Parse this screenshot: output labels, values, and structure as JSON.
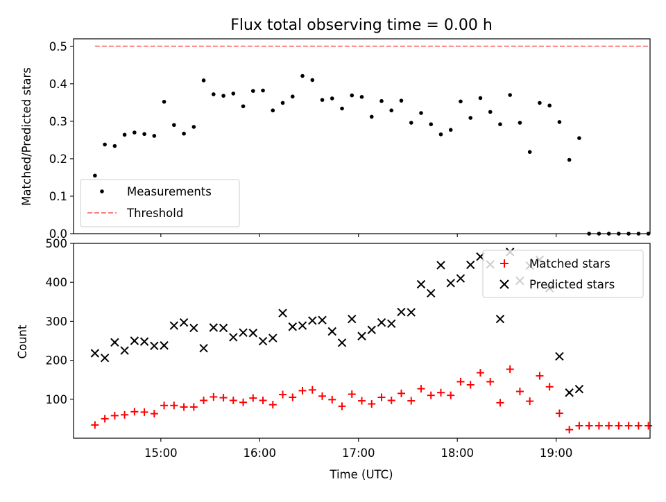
{
  "figure": {
    "title": "Flux total observing time = 0.00 h"
  },
  "chart_data": [
    {
      "type": "scatter",
      "title": "Flux total observing time = 0.00 h",
      "ylabel": "Matched/Predicted stars",
      "xlabel": "",
      "ylim": [
        0,
        0.52
      ],
      "xlim": [
        "14:07",
        "19:57"
      ],
      "yticks": [
        "0.0",
        "0.1",
        "0.2",
        "0.3",
        "0.4",
        "0.5"
      ],
      "yticks_values": [
        0.0,
        0.1,
        0.2,
        0.3,
        0.4,
        0.5
      ],
      "legend_location": "lower-left",
      "grid": false,
      "series": [
        {
          "name": "Measurements",
          "marker": "dot",
          "color": "#000000",
          "points": [
            {
              "x": "14:20",
              "y": 0.155
            },
            {
              "x": "14:26",
              "y": 0.238
            },
            {
              "x": "14:32",
              "y": 0.234
            },
            {
              "x": "14:38",
              "y": 0.264
            },
            {
              "x": "14:44",
              "y": 0.27
            },
            {
              "x": "14:50",
              "y": 0.266
            },
            {
              "x": "14:56",
              "y": 0.261
            },
            {
              "x": "15:02",
              "y": 0.352
            },
            {
              "x": "15:08",
              "y": 0.29
            },
            {
              "x": "15:14",
              "y": 0.267
            },
            {
              "x": "15:20",
              "y": 0.285
            },
            {
              "x": "15:26",
              "y": 0.409
            },
            {
              "x": "15:32",
              "y": 0.372
            },
            {
              "x": "15:38",
              "y": 0.368
            },
            {
              "x": "15:44",
              "y": 0.374
            },
            {
              "x": "15:50",
              "y": 0.34
            },
            {
              "x": "15:56",
              "y": 0.381
            },
            {
              "x": "16:02",
              "y": 0.382
            },
            {
              "x": "16:08",
              "y": 0.329
            },
            {
              "x": "16:14",
              "y": 0.349
            },
            {
              "x": "16:20",
              "y": 0.366
            },
            {
              "x": "16:26",
              "y": 0.421
            },
            {
              "x": "16:32",
              "y": 0.41
            },
            {
              "x": "16:38",
              "y": 0.357
            },
            {
              "x": "16:44",
              "y": 0.361
            },
            {
              "x": "16:50",
              "y": 0.334
            },
            {
              "x": "16:56",
              "y": 0.369
            },
            {
              "x": "17:02",
              "y": 0.365
            },
            {
              "x": "17:08",
              "y": 0.312
            },
            {
              "x": "17:14",
              "y": 0.354
            },
            {
              "x": "17:20",
              "y": 0.329
            },
            {
              "x": "17:26",
              "y": 0.355
            },
            {
              "x": "17:32",
              "y": 0.296
            },
            {
              "x": "17:38",
              "y": 0.322
            },
            {
              "x": "17:44",
              "y": 0.292
            },
            {
              "x": "17:50",
              "y": 0.265
            },
            {
              "x": "17:56",
              "y": 0.277
            },
            {
              "x": "18:02",
              "y": 0.353
            },
            {
              "x": "18:08",
              "y": 0.309
            },
            {
              "x": "18:14",
              "y": 0.362
            },
            {
              "x": "18:20",
              "y": 0.325
            },
            {
              "x": "18:26",
              "y": 0.292
            },
            {
              "x": "18:32",
              "y": 0.37
            },
            {
              "x": "18:38",
              "y": 0.296
            },
            {
              "x": "18:44",
              "y": 0.218
            },
            {
              "x": "18:50",
              "y": 0.349
            },
            {
              "x": "18:56",
              "y": 0.342
            },
            {
              "x": "19:02",
              "y": 0.298
            },
            {
              "x": "19:08",
              "y": 0.197
            },
            {
              "x": "19:14",
              "y": 0.255
            },
            {
              "x": "19:20",
              "y": 0.0
            },
            {
              "x": "19:26",
              "y": 0.0
            },
            {
              "x": "19:32",
              "y": 0.0
            },
            {
              "x": "19:38",
              "y": 0.0
            },
            {
              "x": "19:44",
              "y": 0.0
            },
            {
              "x": "19:50",
              "y": 0.0
            },
            {
              "x": "19:56",
              "y": 0.0
            }
          ]
        },
        {
          "name": "Threshold",
          "style": "dashed-line",
          "color": "#ff7f7f",
          "points": [
            {
              "x": "14:20",
              "y": 0.5
            },
            {
              "x": "19:56",
              "y": 0.5
            }
          ]
        }
      ]
    },
    {
      "type": "scatter",
      "ylabel": "Count",
      "xlabel": "Time (UTC)",
      "ylim": [
        0,
        500
      ],
      "xlim": [
        "14:07",
        "19:57"
      ],
      "yticks": [
        "100",
        "200",
        "300",
        "400",
        "500"
      ],
      "yticks_values": [
        100,
        200,
        300,
        400,
        500
      ],
      "xticks": [
        "15:00",
        "16:00",
        "17:00",
        "18:00",
        "19:00"
      ],
      "legend_location": "upper-right",
      "grid": false,
      "series": [
        {
          "name": "Matched stars",
          "marker": "plus",
          "color": "#ff0000",
          "points": [
            {
              "x": "14:20",
              "y": 34
            },
            {
              "x": "14:26",
              "y": 50
            },
            {
              "x": "14:32",
              "y": 58
            },
            {
              "x": "14:38",
              "y": 60
            },
            {
              "x": "14:44",
              "y": 68
            },
            {
              "x": "14:50",
              "y": 67
            },
            {
              "x": "14:56",
              "y": 63
            },
            {
              "x": "15:02",
              "y": 84
            },
            {
              "x": "15:08",
              "y": 84
            },
            {
              "x": "15:14",
              "y": 80
            },
            {
              "x": "15:20",
              "y": 80
            },
            {
              "x": "15:26",
              "y": 97
            },
            {
              "x": "15:32",
              "y": 106
            },
            {
              "x": "15:38",
              "y": 104
            },
            {
              "x": "15:44",
              "y": 97
            },
            {
              "x": "15:50",
              "y": 92
            },
            {
              "x": "15:56",
              "y": 103
            },
            {
              "x": "16:02",
              "y": 97
            },
            {
              "x": "16:08",
              "y": 86
            },
            {
              "x": "16:14",
              "y": 112
            },
            {
              "x": "16:20",
              "y": 105
            },
            {
              "x": "16:26",
              "y": 122
            },
            {
              "x": "16:32",
              "y": 124
            },
            {
              "x": "16:38",
              "y": 108
            },
            {
              "x": "16:44",
              "y": 99
            },
            {
              "x": "16:50",
              "y": 82
            },
            {
              "x": "16:56",
              "y": 113
            },
            {
              "x": "17:02",
              "y": 96
            },
            {
              "x": "17:08",
              "y": 88
            },
            {
              "x": "17:14",
              "y": 105
            },
            {
              "x": "17:20",
              "y": 97
            },
            {
              "x": "17:26",
              "y": 115
            },
            {
              "x": "17:32",
              "y": 96
            },
            {
              "x": "17:38",
              "y": 127
            },
            {
              "x": "17:44",
              "y": 110
            },
            {
              "x": "17:50",
              "y": 117
            },
            {
              "x": "17:56",
              "y": 110
            },
            {
              "x": "18:02",
              "y": 145
            },
            {
              "x": "18:08",
              "y": 137
            },
            {
              "x": "18:14",
              "y": 168
            },
            {
              "x": "18:20",
              "y": 145
            },
            {
              "x": "18:26",
              "y": 91
            },
            {
              "x": "18:32",
              "y": 177
            },
            {
              "x": "18:38",
              "y": 120
            },
            {
              "x": "18:44",
              "y": 95
            },
            {
              "x": "18:50",
              "y": 160
            },
            {
              "x": "18:56",
              "y": 132
            },
            {
              "x": "19:02",
              "y": 64
            },
            {
              "x": "19:08",
              "y": 22
            },
            {
              "x": "19:14",
              "y": 32
            },
            {
              "x": "19:20",
              "y": 32
            },
            {
              "x": "19:26",
              "y": 32
            },
            {
              "x": "19:32",
              "y": 32
            },
            {
              "x": "19:38",
              "y": 32
            },
            {
              "x": "19:44",
              "y": 32
            },
            {
              "x": "19:50",
              "y": 32
            },
            {
              "x": "19:56",
              "y": 32
            }
          ]
        },
        {
          "name": "Predicted stars",
          "marker": "x",
          "color": "#000000",
          "points": [
            {
              "x": "14:20",
              "y": 218
            },
            {
              "x": "14:26",
              "y": 206
            },
            {
              "x": "14:32",
              "y": 246
            },
            {
              "x": "14:38",
              "y": 225
            },
            {
              "x": "14:44",
              "y": 250
            },
            {
              "x": "14:50",
              "y": 248
            },
            {
              "x": "14:56",
              "y": 237
            },
            {
              "x": "15:02",
              "y": 238
            },
            {
              "x": "15:08",
              "y": 289
            },
            {
              "x": "15:14",
              "y": 297
            },
            {
              "x": "15:20",
              "y": 283
            },
            {
              "x": "15:26",
              "y": 231
            },
            {
              "x": "15:32",
              "y": 284
            },
            {
              "x": "15:38",
              "y": 283
            },
            {
              "x": "15:44",
              "y": 259
            },
            {
              "x": "15:50",
              "y": 271
            },
            {
              "x": "15:56",
              "y": 270
            },
            {
              "x": "16:02",
              "y": 249
            },
            {
              "x": "16:08",
              "y": 257
            },
            {
              "x": "16:14",
              "y": 321
            },
            {
              "x": "16:20",
              "y": 286
            },
            {
              "x": "16:26",
              "y": 289
            },
            {
              "x": "16:32",
              "y": 302
            },
            {
              "x": "16:38",
              "y": 303
            },
            {
              "x": "16:44",
              "y": 274
            },
            {
              "x": "16:50",
              "y": 245
            },
            {
              "x": "16:56",
              "y": 306
            },
            {
              "x": "17:02",
              "y": 262
            },
            {
              "x": "17:08",
              "y": 278
            },
            {
              "x": "17:14",
              "y": 297
            },
            {
              "x": "17:20",
              "y": 294
            },
            {
              "x": "17:26",
              "y": 324
            },
            {
              "x": "17:32",
              "y": 323
            },
            {
              "x": "17:38",
              "y": 395
            },
            {
              "x": "17:44",
              "y": 372
            },
            {
              "x": "17:50",
              "y": 444
            },
            {
              "x": "17:56",
              "y": 398
            },
            {
              "x": "18:02",
              "y": 410
            },
            {
              "x": "18:08",
              "y": 445
            },
            {
              "x": "18:14",
              "y": 466
            },
            {
              "x": "18:20",
              "y": 446
            },
            {
              "x": "18:26",
              "y": 306
            },
            {
              "x": "18:32",
              "y": 478
            },
            {
              "x": "18:38",
              "y": 404
            },
            {
              "x": "18:44",
              "y": 443
            },
            {
              "x": "18:50",
              "y": 458
            },
            {
              "x": "18:56",
              "y": 385
            },
            {
              "x": "19:02",
              "y": 210
            },
            {
              "x": "19:08",
              "y": 117
            },
            {
              "x": "19:14",
              "y": 126
            }
          ]
        }
      ]
    }
  ]
}
